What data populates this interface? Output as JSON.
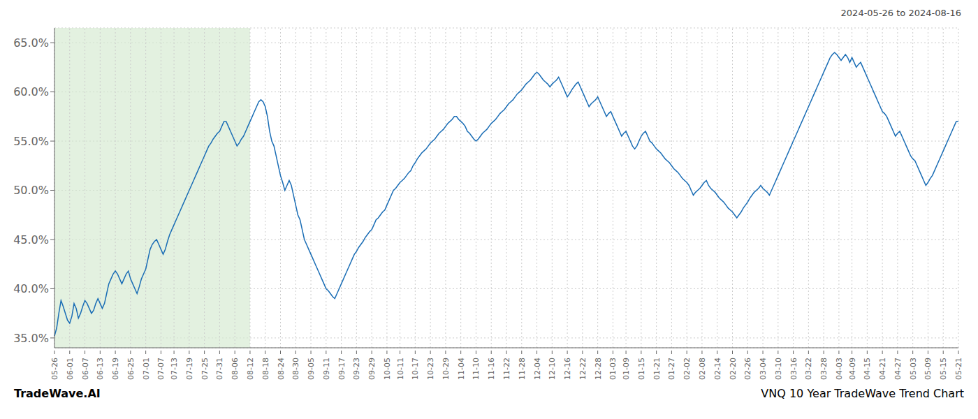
{
  "chart_data": {
    "type": "line",
    "title": "2024-05-26 to 2024-08-16",
    "annotations": [
      "TradeWave.AI",
      "VNQ 10 Year TradeWave Trend Chart"
    ],
    "color": "#1a6db5",
    "grid": true,
    "ylim": [
      34.0,
      66.5
    ],
    "yticks": [
      {
        "value": 35.0,
        "label": "35.0%"
      },
      {
        "value": 40.0,
        "label": "40.0%"
      },
      {
        "value": 45.0,
        "label": "45.0%"
      },
      {
        "value": 50.0,
        "label": "50.0%"
      },
      {
        "value": 55.0,
        "label": "55.0%"
      },
      {
        "value": 60.0,
        "label": "60.0%"
      },
      {
        "value": 65.0,
        "label": "65.0%"
      }
    ],
    "shaded_region": {
      "from": "05-26",
      "to": "08-12",
      "color": "#d4ead0"
    },
    "categories": [
      "05-26",
      null,
      null,
      null,
      null,
      null,
      null,
      "06-01",
      null,
      null,
      null,
      null,
      null,
      null,
      "06-07",
      null,
      null,
      null,
      null,
      null,
      null,
      "06-13",
      null,
      null,
      null,
      null,
      null,
      null,
      "06-19",
      null,
      null,
      null,
      null,
      null,
      null,
      "06-25",
      null,
      null,
      null,
      null,
      null,
      null,
      "07-01",
      null,
      null,
      null,
      null,
      null,
      null,
      "07-07",
      null,
      null,
      null,
      null,
      null,
      "07-13",
      null,
      null,
      null,
      null,
      null,
      null,
      "07-19",
      null,
      null,
      null,
      null,
      null,
      null,
      "07-25",
      null,
      null,
      null,
      null,
      null,
      null,
      "07-31",
      null,
      null,
      null,
      null,
      null,
      null,
      "08-06",
      null,
      null,
      null,
      null,
      null,
      null,
      "08-12",
      null,
      null,
      null,
      null,
      null,
      null,
      "08-18",
      null,
      null,
      null,
      null,
      null,
      null,
      "08-24",
      null,
      null,
      null,
      null,
      null,
      null,
      "08-30",
      null,
      null,
      null,
      null,
      null,
      null,
      "09-05",
      null,
      null,
      null,
      null,
      null,
      null,
      "09-11",
      null,
      null,
      null,
      null,
      null,
      null,
      "09-17",
      null,
      null,
      null,
      null,
      null,
      null,
      "09-23",
      null,
      null,
      null,
      null,
      null,
      null,
      "09-29",
      null,
      null,
      null,
      null,
      null,
      null,
      "10-05",
      null,
      null,
      null,
      null,
      null,
      "10-11",
      null,
      null,
      null,
      null,
      null,
      null,
      "10-17",
      null,
      null,
      null,
      null,
      null,
      null,
      "10-23",
      null,
      null,
      null,
      null,
      null,
      null,
      "10-29",
      null,
      null,
      null,
      null,
      null,
      null,
      "11-04",
      null,
      null,
      null,
      null,
      null,
      null,
      "11-10",
      null,
      null,
      null,
      null,
      null,
      null,
      "11-16",
      null,
      null,
      null,
      null,
      null,
      null,
      "11-22",
      null,
      null,
      null,
      null,
      null,
      null,
      "11-28",
      null,
      null,
      null,
      null,
      null,
      null,
      "12-04",
      null,
      null,
      null,
      null,
      null,
      null,
      "12-10",
      null,
      null,
      null,
      null,
      null,
      null,
      "12-16",
      null,
      null,
      null,
      null,
      null,
      null,
      "12-22",
      null,
      null,
      null,
      null,
      null,
      null,
      "12-28",
      null,
      null,
      null,
      null,
      null,
      null,
      "01-03",
      null,
      null,
      null,
      null,
      null,
      "01-09",
      null,
      null,
      null,
      null,
      null,
      null,
      "01-15",
      null,
      null,
      null,
      null,
      null,
      null,
      "01-21",
      null,
      null,
      null,
      null,
      null,
      null,
      "01-27",
      null,
      null,
      null,
      null,
      null,
      null,
      "02-02",
      null,
      null,
      null,
      null,
      null,
      null,
      "02-08",
      null,
      null,
      null,
      null,
      null,
      null,
      "02-14",
      null,
      null,
      null,
      null,
      null,
      null,
      "02-20",
      null,
      null,
      null,
      null,
      null,
      null,
      "02-26",
      null,
      null,
      null,
      null,
      null,
      null,
      "03-04",
      null,
      null,
      null,
      null,
      null,
      null,
      "03-10",
      null,
      null,
      null,
      null,
      null,
      null,
      "03-16",
      null,
      null,
      null,
      null,
      null,
      null,
      "03-22",
      null,
      null,
      null,
      null,
      null,
      null,
      "03-28",
      null,
      null,
      null,
      null,
      null,
      null,
      "04-03",
      null,
      null,
      null,
      null,
      null,
      "04-09",
      null,
      null,
      null,
      null,
      null,
      null,
      "04-15",
      null,
      null,
      null,
      null,
      null,
      null,
      "04-21",
      null,
      null,
      null,
      null,
      null,
      null,
      "04-27",
      null,
      null,
      null,
      null,
      null,
      null,
      "05-03",
      null,
      null,
      null,
      null,
      null,
      null,
      "05-09",
      null,
      null,
      null,
      null,
      null,
      null,
      "05-15",
      null,
      null,
      null,
      null,
      null,
      null,
      "05-21"
    ],
    "values": [
      35.2,
      36.0,
      37.5,
      38.8,
      38.2,
      37.5,
      36.8,
      36.5,
      37.2,
      38.5,
      38.0,
      37.0,
      37.5,
      38.2,
      38.8,
      38.5,
      38.0,
      37.5,
      37.8,
      38.5,
      39.0,
      38.5,
      38.0,
      38.5,
      39.5,
      40.5,
      41.0,
      41.5,
      41.8,
      41.5,
      41.0,
      40.5,
      41.0,
      41.5,
      41.8,
      41.0,
      40.5,
      40.0,
      39.5,
      40.2,
      41.0,
      41.5,
      42.0,
      43.0,
      44.0,
      44.5,
      44.8,
      45.0,
      44.5,
      44.0,
      43.5,
      44.0,
      44.8,
      45.5,
      46.0,
      46.5,
      47.0,
      47.5,
      48.0,
      48.5,
      49.0,
      49.5,
      50.0,
      50.5,
      51.0,
      51.5,
      52.0,
      52.5,
      53.0,
      53.5,
      54.0,
      54.5,
      54.8,
      55.2,
      55.5,
      55.8,
      56.0,
      56.5,
      57.0,
      57.0,
      56.5,
      56.0,
      55.5,
      55.0,
      54.5,
      54.8,
      55.2,
      55.5,
      56.0,
      56.5,
      57.0,
      57.5,
      58.0,
      58.5,
      59.0,
      59.2,
      59.0,
      58.5,
      57.5,
      56.0,
      55.0,
      54.5,
      53.5,
      52.5,
      51.5,
      50.8,
      50.0,
      50.5,
      51.0,
      50.5,
      49.5,
      48.5,
      47.5,
      47.0,
      46.0,
      45.0,
      44.5,
      44.0,
      43.5,
      43.0,
      42.5,
      42.0,
      41.5,
      41.0,
      40.5,
      40.0,
      39.8,
      39.5,
      39.2,
      39.0,
      39.5,
      40.0,
      40.5,
      41.0,
      41.5,
      42.0,
      42.5,
      43.0,
      43.5,
      43.8,
      44.2,
      44.5,
      44.8,
      45.2,
      45.5,
      45.8,
      46.0,
      46.5,
      47.0,
      47.2,
      47.5,
      47.8,
      48.0,
      48.5,
      49.0,
      49.5,
      50.0,
      50.2,
      50.5,
      50.8,
      51.0,
      51.2,
      51.5,
      51.8,
      52.0,
      52.5,
      52.8,
      53.2,
      53.5,
      53.8,
      54.0,
      54.2,
      54.5,
      54.8,
      55.0,
      55.2,
      55.5,
      55.8,
      56.0,
      56.2,
      56.5,
      56.8,
      57.0,
      57.2,
      57.5,
      57.5,
      57.2,
      57.0,
      56.8,
      56.5,
      56.0,
      55.8,
      55.5,
      55.2,
      55.0,
      55.2,
      55.5,
      55.8,
      56.0,
      56.2,
      56.5,
      56.8,
      57.0,
      57.2,
      57.5,
      57.8,
      58.0,
      58.2,
      58.5,
      58.8,
      59.0,
      59.2,
      59.5,
      59.8,
      60.0,
      60.2,
      60.5,
      60.8,
      61.0,
      61.2,
      61.5,
      61.8,
      62.0,
      61.8,
      61.5,
      61.2,
      61.0,
      60.8,
      60.5,
      60.8,
      61.0,
      61.2,
      61.5,
      61.0,
      60.5,
      60.0,
      59.5,
      59.8,
      60.2,
      60.5,
      60.8,
      61.0,
      60.5,
      60.0,
      59.5,
      59.0,
      58.5,
      58.8,
      59.0,
      59.2,
      59.5,
      59.0,
      58.5,
      58.0,
      57.5,
      57.8,
      58.0,
      57.5,
      57.0,
      56.5,
      56.0,
      55.5,
      55.8,
      56.0,
      55.5,
      55.0,
      54.5,
      54.2,
      54.5,
      55.0,
      55.5,
      55.8,
      56.0,
      55.5,
      55.0,
      54.8,
      54.5,
      54.2,
      54.0,
      53.8,
      53.5,
      53.2,
      53.0,
      52.8,
      52.5,
      52.2,
      52.0,
      51.8,
      51.5,
      51.2,
      51.0,
      50.8,
      50.5,
      50.0,
      49.5,
      49.8,
      50.0,
      50.2,
      50.5,
      50.8,
      51.0,
      50.5,
      50.2,
      50.0,
      49.8,
      49.5,
      49.2,
      49.0,
      48.8,
      48.5,
      48.2,
      48.0,
      47.8,
      47.5,
      47.2,
      47.5,
      47.8,
      48.2,
      48.5,
      48.8,
      49.2,
      49.5,
      49.8,
      50.0,
      50.2,
      50.5,
      50.2,
      50.0,
      49.8,
      49.5,
      50.0,
      50.5,
      51.0,
      51.5,
      52.0,
      52.5,
      53.0,
      53.5,
      54.0,
      54.5,
      55.0,
      55.5,
      56.0,
      56.5,
      57.0,
      57.5,
      58.0,
      58.5,
      59.0,
      59.5,
      60.0,
      60.5,
      61.0,
      61.5,
      62.0,
      62.5,
      63.0,
      63.5,
      63.8,
      64.0,
      63.8,
      63.5,
      63.2,
      63.5,
      63.8,
      63.5,
      63.0,
      63.5,
      63.0,
      62.5,
      62.8,
      63.0,
      62.5,
      62.0,
      61.5,
      61.0,
      60.5,
      60.0,
      59.5,
      59.0,
      58.5,
      58.0,
      57.8,
      57.5,
      57.0,
      56.5,
      56.0,
      55.5,
      55.8,
      56.0,
      55.5,
      55.0,
      54.5,
      54.0,
      53.5,
      53.2,
      53.0,
      52.5,
      52.0,
      51.5,
      51.0,
      50.5,
      50.8,
      51.2,
      51.5,
      52.0,
      52.5,
      53.0,
      53.5,
      54.0,
      54.5,
      55.0,
      55.5,
      56.0,
      56.5,
      57.0,
      57.0
    ]
  }
}
